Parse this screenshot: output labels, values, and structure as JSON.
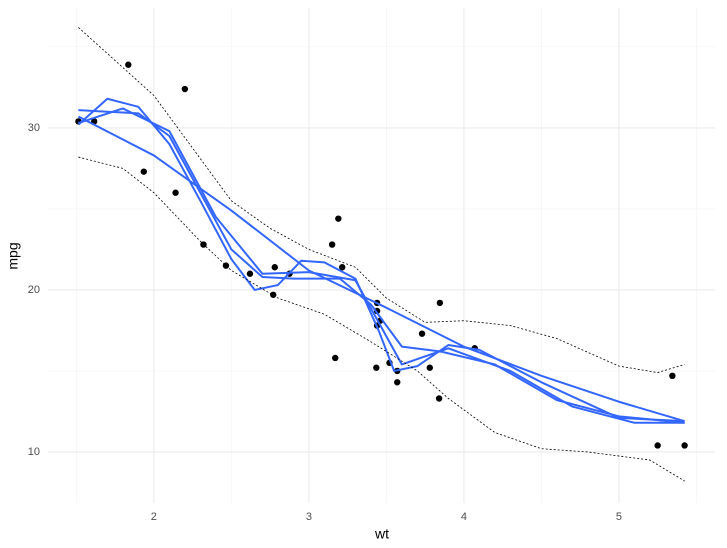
{
  "chart_data": {
    "type": "scatter",
    "xlabel": "wt",
    "ylabel": "mpg",
    "xlim": [
      1.317,
      5.62
    ],
    "ylim": [
      6.85,
      37.4
    ],
    "xticks": [
      2,
      3,
      4,
      5
    ],
    "yticks": [
      10,
      20,
      30
    ],
    "xminor": [
      1.5,
      2.5,
      3.5,
      4.5,
      5.5
    ],
    "yminor": [
      15,
      25,
      35
    ],
    "grid": true,
    "points": {
      "color": "#000000",
      "x": [
        2.62,
        2.875,
        2.32,
        3.215,
        3.44,
        3.46,
        3.57,
        3.19,
        3.15,
        3.44,
        3.44,
        4.07,
        3.73,
        3.78,
        5.25,
        5.424,
        5.345,
        2.2,
        1.615,
        1.835,
        2.465,
        3.52,
        3.435,
        3.84,
        3.845,
        1.935,
        2.14,
        1.513,
        3.17,
        2.77,
        3.57,
        2.78
      ],
      "values": [
        21.0,
        21.0,
        22.8,
        21.4,
        18.7,
        18.1,
        14.3,
        24.4,
        22.8,
        19.2,
        17.8,
        16.4,
        17.3,
        15.2,
        10.4,
        10.4,
        14.7,
        32.4,
        30.4,
        33.9,
        21.5,
        15.5,
        15.2,
        13.3,
        19.2,
        27.3,
        26.0,
        30.4,
        15.8,
        19.7,
        15.0,
        21.4
      ]
    },
    "series": [
      {
        "color": "#3366ff",
        "dash": false,
        "x": [
          1.513,
          2.0,
          2.5,
          3.0,
          3.5,
          4.0,
          4.5,
          5.0,
          5.424
        ],
        "values": [
          30.7,
          28.3,
          24.9,
          21.2,
          18.9,
          16.5,
          14.7,
          13.1,
          11.9
        ]
      },
      {
        "color": "#3366ff",
        "dash": false,
        "x": [
          1.513,
          1.7,
          1.9,
          2.1,
          2.3,
          2.5,
          2.65,
          2.8,
          2.95,
          3.1,
          3.3,
          3.45,
          3.55,
          3.7,
          3.9,
          4.1,
          4.5,
          5.0,
          5.424
        ],
        "values": [
          30.2,
          31.8,
          31.3,
          29.0,
          25.5,
          21.9,
          20.0,
          20.3,
          21.8,
          21.7,
          20.7,
          17.5,
          15.0,
          15.3,
          16.6,
          16.3,
          14.3,
          12.1,
          11.9
        ]
      },
      {
        "color": "#3366ff",
        "dash": false,
        "x": [
          1.513,
          1.7,
          1.9,
          2.1,
          2.3,
          2.5,
          2.7,
          2.9,
          3.2,
          3.4,
          3.6,
          3.85,
          4.2,
          4.6,
          5.0,
          5.424
        ],
        "values": [
          31.1,
          31.0,
          30.9,
          29.5,
          26.0,
          22.5,
          20.8,
          20.7,
          20.7,
          19.1,
          16.5,
          16.2,
          15.4,
          13.2,
          12.2,
          11.8
        ]
      },
      {
        "color": "#3366ff",
        "dash": false,
        "x": [
          1.513,
          1.8,
          2.1,
          2.4,
          2.7,
          3.0,
          3.3,
          3.6,
          3.9,
          4.3,
          4.7,
          5.1,
          5.424
        ],
        "values": [
          30.3,
          31.2,
          29.8,
          24.5,
          21.0,
          21.1,
          20.6,
          15.4,
          16.4,
          15.0,
          12.8,
          11.8,
          11.8
        ]
      },
      {
        "color": "#000000",
        "dash": true,
        "x": [
          1.513,
          2.0,
          2.5,
          2.75,
          3.0,
          3.3,
          3.5,
          3.75,
          4.0,
          4.3,
          4.6,
          5.0,
          5.25,
          5.424
        ],
        "values": [
          36.2,
          32.0,
          25.5,
          23.8,
          22.5,
          21.4,
          19.5,
          18.0,
          18.1,
          17.8,
          17.0,
          15.3,
          14.9,
          15.4
        ]
      },
      {
        "color": "#000000",
        "dash": true,
        "x": [
          1.513,
          1.8,
          2.0,
          2.3,
          2.5,
          2.8,
          3.1,
          3.4,
          3.7,
          3.9,
          4.2,
          4.5,
          4.8,
          5.2,
          5.424
        ],
        "values": [
          28.2,
          27.5,
          26.0,
          23.0,
          21.2,
          19.5,
          18.5,
          16.8,
          15.0,
          13.3,
          11.2,
          10.2,
          10.0,
          9.5,
          8.2
        ]
      }
    ]
  }
}
